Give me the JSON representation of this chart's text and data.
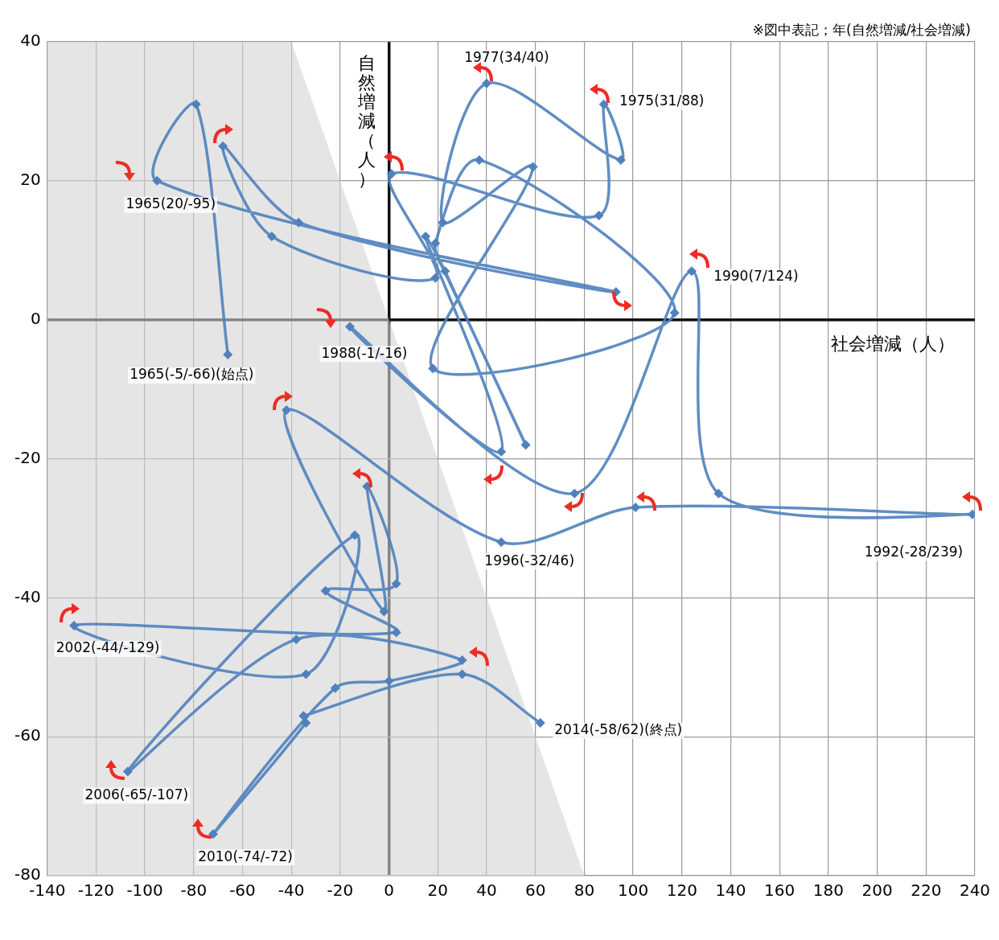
{
  "chart_data": {
    "type": "line",
    "xlabel": "社会増減（人）",
    "ylabel": "自然増減（人）",
    "annotations": [
      "※図中表記；年(自然増減/社会増減)",
      {
        "text": "1965(-5/-66)(始点)",
        "x": -66,
        "y": -5
      },
      {
        "text": "1965(20/-95)",
        "x": -95,
        "y": 20
      },
      {
        "text": "1975(31/88)",
        "x": 88,
        "y": 31
      },
      {
        "text": "1977(34/40)",
        "x": 40,
        "y": 34
      },
      {
        "text": "1988(-1/-16)",
        "x": -16,
        "y": -1
      },
      {
        "text": "1990(7/124)",
        "x": 124,
        "y": 7
      },
      {
        "text": "1992(-28/239)",
        "x": 239,
        "y": -28
      },
      {
        "text": "1996(-32/46)",
        "x": 46,
        "y": -32
      },
      {
        "text": "2002(-44/-129)",
        "x": -129,
        "y": -44
      },
      {
        "text": "2006(-65/-107)",
        "x": -107,
        "y": -65
      },
      {
        "text": "2010(-74/-72)",
        "x": -72,
        "y": -74
      },
      {
        "text": "2014(-58/62)(終点)",
        "x": 62,
        "y": -58
      }
    ],
    "xlim": [
      -140,
      240
    ],
    "xticks": [
      -140,
      -120,
      -100,
      -80,
      -60,
      -40,
      -20,
      0,
      20,
      40,
      60,
      80,
      100,
      120,
      140,
      160,
      180,
      200,
      220,
      240
    ],
    "ylim": [
      -80,
      40
    ],
    "yticks": [
      -80,
      -60,
      -40,
      -20,
      0,
      20,
      40
    ],
    "grid": true,
    "series": [
      {
        "type": "area",
        "color": "#d4d4d4",
        "x": [
          -140,
          -140,
          -40,
          80
        ],
        "values": [
          -80,
          40,
          40,
          -80
        ]
      },
      {
        "color": "#4f81bd",
        "marker": "diamond",
        "x": [
          -66,
          -79,
          -95,
          93,
          -37,
          -68,
          -48,
          19,
          1,
          86,
          88,
          95,
          40,
          22,
          59,
          18,
          117,
          37,
          19,
          23,
          56,
          15,
          46,
          -16,
          76,
          124,
          135,
          239,
          101,
          46,
          -42,
          -2,
          -9,
          3,
          -26,
          3,
          -129,
          -34,
          -14,
          -107,
          -38,
          30,
          0,
          -22,
          -72,
          -34,
          -35,
          30,
          62
        ],
        "values": [
          -5,
          31,
          20,
          4,
          14,
          25,
          12,
          6,
          21,
          15,
          31,
          23,
          34,
          14,
          22,
          -7,
          1,
          23,
          11,
          7,
          -18,
          12,
          -19,
          -1,
          -25,
          7,
          -25,
          -28,
          -27,
          -32,
          -13,
          -42,
          -24,
          -38,
          -39,
          -45,
          -44,
          -51,
          -31,
          -65,
          -46,
          -49,
          -52,
          -53,
          -74,
          -58,
          -57,
          -51,
          -58
        ]
      }
    ]
  }
}
